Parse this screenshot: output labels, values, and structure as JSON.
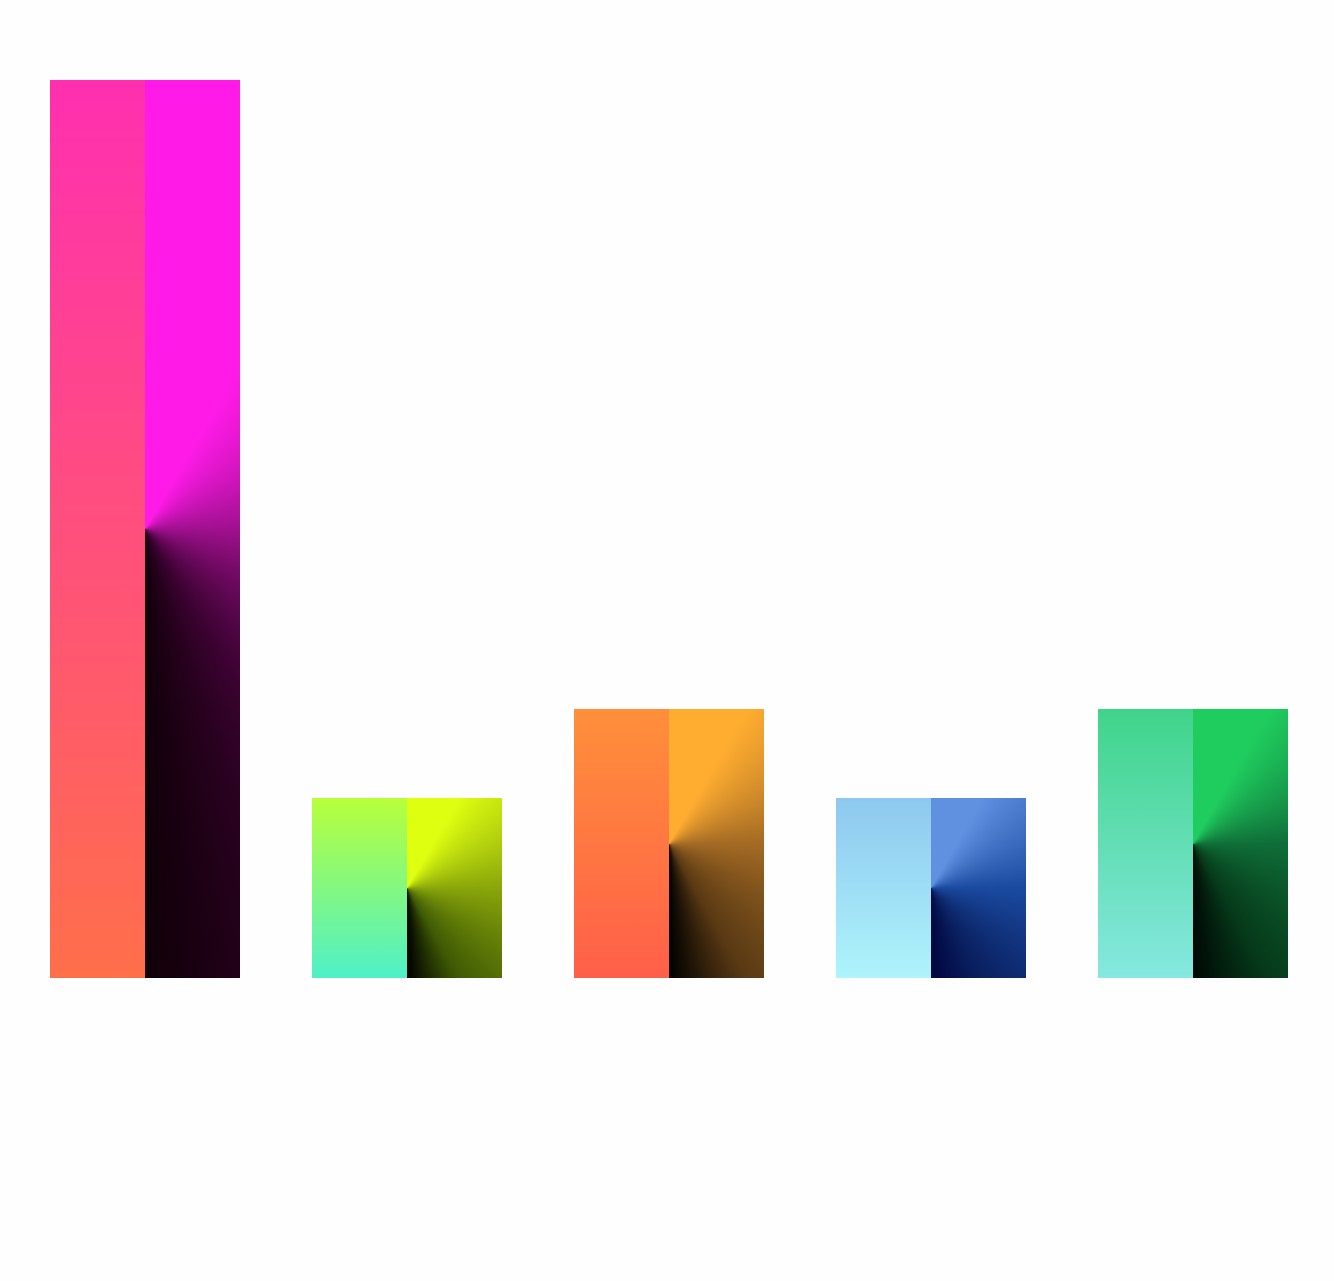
{
  "chart_data": {
    "type": "bar",
    "title": "",
    "xlabel": "",
    "ylabel": "",
    "grid": false,
    "legend": "none",
    "ylim": [
      0,
      100
    ],
    "bars": [
      {
        "value": 100,
        "colors": {
          "left_top": "#ff2fb0",
          "left_bottom": "#ff6f4a",
          "right_top": "#ff1ae8",
          "right_mid": "#a0108f",
          "right_bottom": "#3a0230",
          "dark": "#100008"
        }
      },
      {
        "value": 20,
        "colors": {
          "left_top": "#b8ff3a",
          "left_bottom": "#4ff0c8",
          "right_top": "#dfff10",
          "right_mid": "#8aa60a",
          "right_bottom": "#3f5a04",
          "dark": "#000000"
        }
      },
      {
        "value": 30,
        "colors": {
          "left_top": "#ff8f3a",
          "left_bottom": "#ff5f4a",
          "right_top": "#ffad30",
          "right_mid": "#a36a24",
          "right_bottom": "#5a3a14",
          "dark": "#000000"
        }
      },
      {
        "value": 20,
        "colors": {
          "left_top": "#8ec8ef",
          "left_bottom": "#aef4fb",
          "right_top": "#6090e0",
          "right_mid": "#1a4aa0",
          "right_bottom": "#0a2060",
          "dark": "#000640"
        }
      },
      {
        "value": 30,
        "colors": {
          "left_top": "#3fd48a",
          "left_bottom": "#86e8e0",
          "right_top": "#1fcc5e",
          "right_mid": "#0f6e38",
          "right_bottom": "#063a1a",
          "dark": "#000804"
        }
      }
    ]
  }
}
